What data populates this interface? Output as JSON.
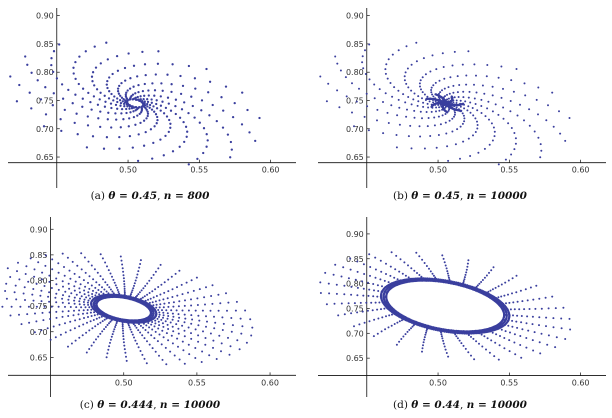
{
  "chart_data": [
    {
      "type": "scatter",
      "panel_label": "(a)",
      "theta_label": "θ = 0.45",
      "n_label": "n = 800",
      "theta": 0.45,
      "n": 800,
      "xlim": [
        0.42,
        0.615
      ],
      "ylim": [
        0.62,
        0.91
      ],
      "xticks": [
        "0.50",
        "0.55",
        "0.60"
      ],
      "yticks": [
        "0.65",
        "0.70",
        "0.75",
        "0.80",
        "0.85",
        "0.90"
      ],
      "xtick_values": [
        0.5,
        0.55,
        0.6
      ],
      "ytick_values": [
        0.65,
        0.7,
        0.75,
        0.8,
        0.85,
        0.9
      ],
      "axis_origin": [
        0.45,
        0.64
      ],
      "fixed_point": [
        0.505,
        0.745
      ],
      "spiral": {
        "arms": 15,
        "r_outer": 0.17,
        "r_inner": 0.011,
        "points_per_arm": 22,
        "ring_points": 0,
        "dense": false
      }
    },
    {
      "type": "scatter",
      "panel_label": "(b)",
      "theta_label": "θ = 0.45",
      "n_label": "n = 10000",
      "theta": 0.45,
      "n": 10000,
      "xlim": [
        0.42,
        0.615
      ],
      "ylim": [
        0.62,
        0.91
      ],
      "xticks": [
        "0.50",
        "0.55",
        "0.60"
      ],
      "yticks": [
        "0.65",
        "0.70",
        "0.75",
        "0.80",
        "0.85",
        "0.90"
      ],
      "xtick_values": [
        0.5,
        0.55,
        0.6
      ],
      "ytick_values": [
        0.65,
        0.7,
        0.75,
        0.8,
        0.85,
        0.9
      ],
      "axis_origin": [
        0.45,
        0.64
      ],
      "fixed_point": [
        0.505,
        0.745
      ],
      "spiral": {
        "arms": 15,
        "r_outer": 0.17,
        "r_inner": 0.002,
        "points_per_arm": 26,
        "ring_points": 0,
        "dense": true
      }
    },
    {
      "type": "scatter",
      "panel_label": "(c)",
      "theta_label": "θ = 0.444",
      "n_label": "n = 10000",
      "theta": 0.444,
      "n": 10000,
      "xlim": [
        0.425,
        0.615
      ],
      "ylim": [
        0.6,
        0.92
      ],
      "xticks": [
        "0.50",
        "0.55",
        "0.60"
      ],
      "yticks": [
        "0.65",
        "0.70",
        "0.75",
        "0.80",
        "0.85",
        "0.90"
      ],
      "xtick_values": [
        0.5,
        0.55,
        0.6
      ],
      "ytick_values": [
        0.65,
        0.7,
        0.75,
        0.8,
        0.85,
        0.9
      ],
      "axis_origin": [
        0.45,
        0.615
      ],
      "fixed_point": [
        0.5,
        0.745
      ],
      "spiral": {
        "arms": 40,
        "r_outer": 0.17,
        "r_inner": 0.036,
        "points_per_arm": 18,
        "ring_points": 120,
        "dense": true
      }
    },
    {
      "type": "scatter",
      "panel_label": "(d)",
      "theta_label": "θ = 0.44",
      "n_label": "n = 10000",
      "theta": 0.44,
      "n": 10000,
      "xlim": [
        0.42,
        0.615
      ],
      "ylim": [
        0.6,
        0.93
      ],
      "xticks": [
        "0.50",
        "0.55",
        "0.60"
      ],
      "yticks": [
        "0.65",
        "0.70",
        "0.75",
        "0.80",
        "0.85",
        "0.90"
      ],
      "xtick_values": [
        0.5,
        0.55,
        0.6
      ],
      "ytick_values": [
        0.65,
        0.7,
        0.75,
        0.8,
        0.85,
        0.9
      ],
      "axis_origin": [
        0.45,
        0.615
      ],
      "fixed_point": [
        0.505,
        0.755
      ],
      "spiral": {
        "arms": 30,
        "r_outer": 0.17,
        "r_inner": 0.08,
        "points_per_arm": 14,
        "ring_points": 220,
        "dense": true
      }
    }
  ],
  "colors": {
    "points": "#3a3f9e",
    "axis": "#111111",
    "text": "#333333"
  }
}
